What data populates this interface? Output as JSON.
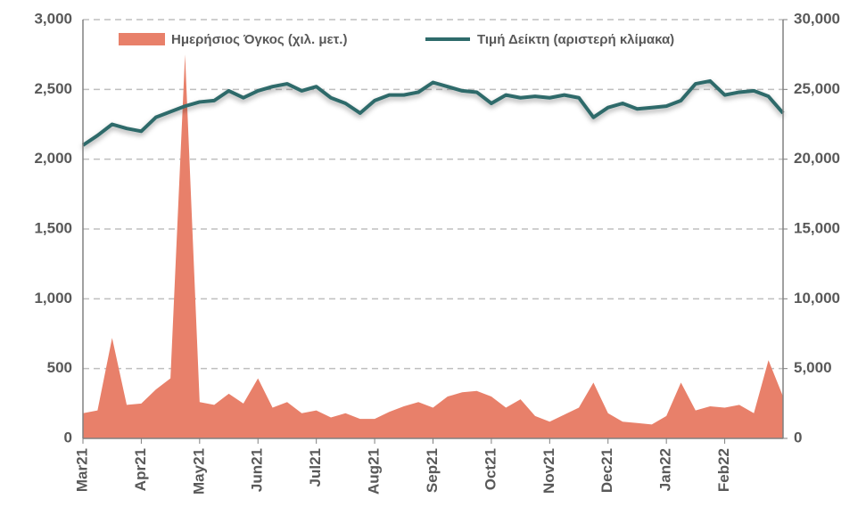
{
  "chart_data": {
    "type": "area-line",
    "categories": [
      "Mar21",
      null,
      null,
      null,
      "Apr21",
      null,
      null,
      null,
      "May21",
      null,
      null,
      null,
      "Jun21",
      null,
      null,
      null,
      "Jul21",
      null,
      null,
      null,
      "Aug21",
      null,
      null,
      null,
      "Sep21",
      null,
      null,
      null,
      "Oct21",
      null,
      null,
      null,
      "Nov21",
      null,
      null,
      null,
      "Dec21",
      null,
      null,
      null,
      "Jan22",
      null,
      null,
      null,
      "Feb22",
      null,
      null,
      null,
      null
    ],
    "series": [
      {
        "name": "Ημερήσιος Όγκος (χιλ. μετ.)",
        "color": "#e8806a",
        "axis": "y2",
        "values": [
          1800,
          2000,
          7200,
          2400,
          2500,
          3500,
          4300,
          27500,
          2600,
          2400,
          3200,
          2500,
          4300,
          2200,
          2600,
          1800,
          2000,
          1500,
          1800,
          1400,
          1400,
          1900,
          2300,
          2600,
          2200,
          3000,
          3300,
          3400,
          3000,
          2200,
          2800,
          1600,
          1200,
          1700,
          2200,
          4000,
          1800,
          1200,
          1100,
          1000,
          1600,
          4000,
          2000,
          2300,
          2200,
          2400,
          1800,
          5600,
          3000
        ]
      },
      {
        "name": "Τιμή Δείκτη (αριστερή κλίμακα)",
        "color": "#2e6b6b",
        "values": [
          2100,
          2170,
          2250,
          2220,
          2200,
          2300,
          2340,
          2380,
          2410,
          2420,
          2490,
          2440,
          2490,
          2520,
          2540,
          2490,
          2520,
          2440,
          2400,
          2330,
          2420,
          2460,
          2460,
          2480,
          2550,
          2520,
          2490,
          2480,
          2400,
          2460,
          2440,
          2450,
          2440,
          2460,
          2440,
          2300,
          2370,
          2400,
          2360,
          2370,
          2380,
          2420,
          2540,
          2560,
          2460,
          2480,
          2490,
          2450,
          2330
        ]
      }
    ],
    "ylim": [
      0,
      3000
    ],
    "yticks": [
      0,
      500,
      {
        "value": 1000,
        "label": "1,000"
      },
      {
        "value": 1500,
        "label": "1,500"
      },
      {
        "value": 2000,
        "label": "2,000"
      },
      {
        "value": 2500,
        "label": "2,500"
      },
      {
        "value": 3000,
        "label": "3,000"
      }
    ],
    "y2lim": [
      0,
      30000
    ],
    "y2ticks": [
      0,
      {
        "value": 5000,
        "label": "5,000"
      },
      {
        "value": 10000,
        "label": "10,000"
      },
      {
        "value": 15000,
        "label": "15,000"
      },
      {
        "value": 20000,
        "label": "20,000"
      },
      {
        "value": 25000,
        "label": "25,000"
      },
      {
        "value": 30000,
        "label": "30,000"
      }
    ],
    "grid": true
  }
}
